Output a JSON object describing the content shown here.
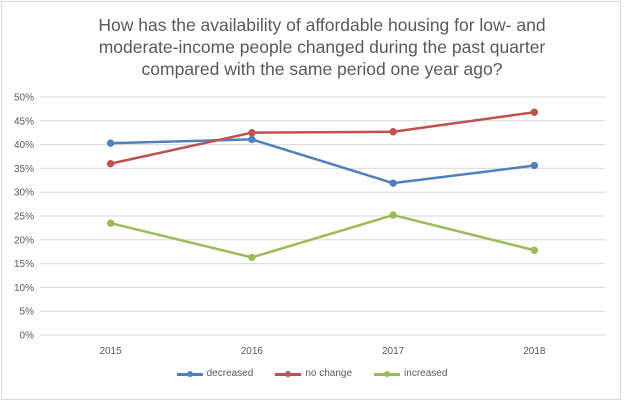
{
  "chart_data": {
    "type": "line",
    "title_lines": [
      "How has the availability of affordable housing for low- and",
      "moderate-income people changed during the past quarter",
      "compared with the same period one year ago?"
    ],
    "categories": [
      "2015",
      "2016",
      "2017",
      "2018"
    ],
    "y_ticks": [
      "0%",
      "5%",
      "10%",
      "15%",
      "20%",
      "25%",
      "30%",
      "35%",
      "40%",
      "45%",
      "50%"
    ],
    "ylim": [
      0,
      50
    ],
    "y_step": 5,
    "grid": true,
    "legend_position": "bottom",
    "series": [
      {
        "name": "decreased",
        "color": "#4f81bd",
        "values": [
          40.3,
          41.1,
          31.9,
          35.6
        ]
      },
      {
        "name": "no change",
        "color": "#c0504d",
        "values": [
          36.0,
          42.5,
          42.7,
          46.8
        ]
      },
      {
        "name": "increased",
        "color": "#9bbb59",
        "values": [
          23.5,
          16.3,
          25.2,
          17.8
        ]
      }
    ]
  }
}
